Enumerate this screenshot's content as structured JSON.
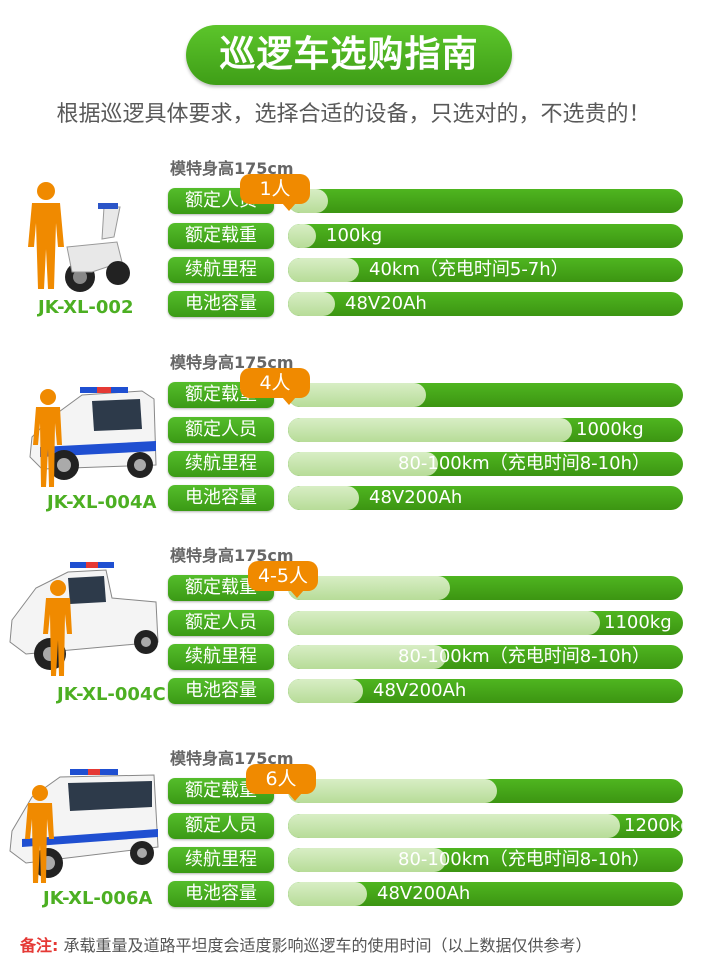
{
  "title": "巡逻车选购指南",
  "subtitle": "根据巡逻具体要求，选择合适的设备，只选对的，不选贵的！",
  "colors": {
    "green": "#4caf22",
    "orange": "#f08a00",
    "bar_light": "#c9e6b0"
  },
  "models": [
    {
      "height_label": "模特身高175cm",
      "code": "JK-XL-002",
      "bubble": "1人",
      "rows": [
        {
          "label": "额定人员",
          "text": "",
          "level": 0.1
        },
        {
          "label": "额定载重",
          "text": "100kg",
          "level": 0.07
        },
        {
          "label": "续航里程",
          "text": "40km（充电时间5-7h）",
          "level": 0.18
        },
        {
          "label": "电池容量",
          "text": "48V20Ah",
          "level": 0.12
        }
      ]
    },
    {
      "height_label": "模特身高175cm",
      "code": "JK-XL-004A",
      "bubble": "4人",
      "rows": [
        {
          "label": "额定载重",
          "text": "",
          "level": 0.35
        },
        {
          "label": "额定人员",
          "text": "1000kg",
          "level": 0.72
        },
        {
          "label": "续航里程",
          "text": "80-100km（充电时间8-10h）",
          "level": 0.38
        },
        {
          "label": "电池容量",
          "text": "48V200Ah",
          "level": 0.18
        }
      ]
    },
    {
      "height_label": "模特身高175cm",
      "code": "JK-XL-004C",
      "bubble": "4-5人",
      "rows": [
        {
          "label": "额定载重",
          "text": "",
          "level": 0.41
        },
        {
          "label": "额定人员",
          "text": "1100kg",
          "level": 0.79
        },
        {
          "label": "续航里程",
          "text": "80-100km（充电时间8-10h）",
          "level": 0.4
        },
        {
          "label": "电池容量",
          "text": "48V200Ah",
          "level": 0.19
        }
      ]
    },
    {
      "height_label": "模特身高175cm",
      "code": "JK-XL-006A",
      "bubble": "6人",
      "rows": [
        {
          "label": "额定载重",
          "text": "",
          "level": 0.53
        },
        {
          "label": "额定人员",
          "text": "1200kg",
          "level": 0.84
        },
        {
          "label": "续航里程",
          "text": "80-100km（充电时间8-10h）",
          "level": 0.4
        },
        {
          "label": "电池容量",
          "text": "48V200Ah",
          "level": 0.2
        }
      ]
    }
  ],
  "note_label": "备注:",
  "note_text": "承载重量及道路平坦度会适度影响巡逻车的使用时间（以上数据仅供参考）",
  "icons": [
    "person-figure-icon",
    "scooter-icon",
    "patrol-car-icon"
  ]
}
